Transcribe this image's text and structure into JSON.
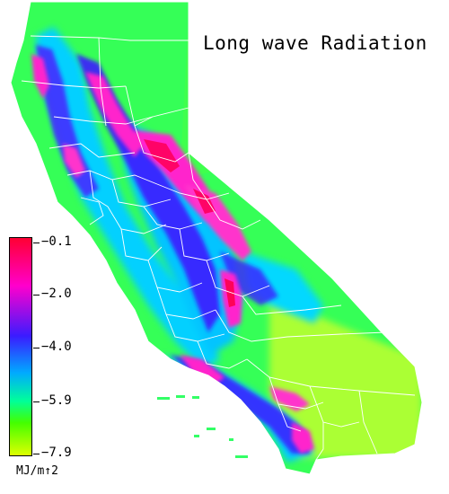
{
  "title": "Long wave Radiation",
  "legend": {
    "ticks": [
      "−0.1",
      "−2.0",
      "−4.0",
      "−5.9",
      "−7.9"
    ],
    "units": "MJ/m↑2"
  },
  "colors": {
    "background": "#ffffff",
    "land_base": "#33ff55",
    "state_outline": "#ffffff",
    "scale_max": "#ff0033",
    "scale_high": "#ff00cc",
    "scale_mid": "#3b1bff",
    "scale_low": "#00ccff",
    "scale_lower": "#00ff99",
    "scale_min": "#ddff00"
  }
}
